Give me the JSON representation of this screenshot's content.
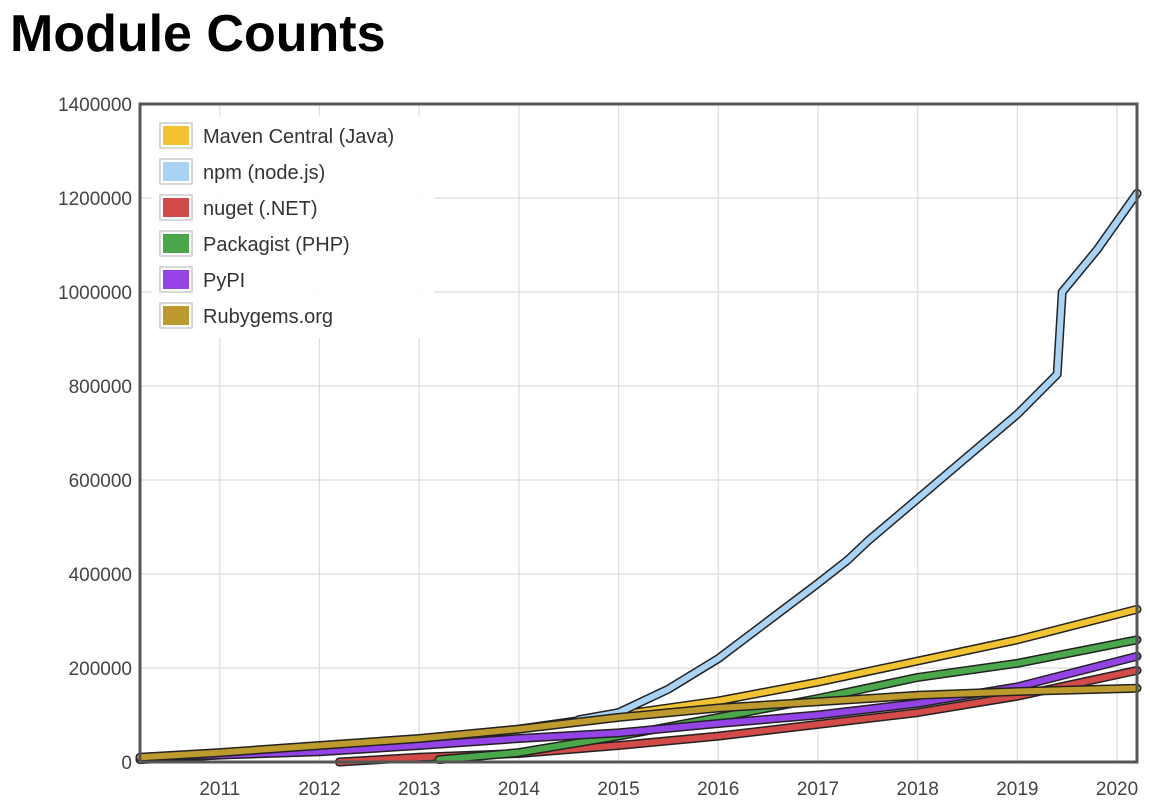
{
  "page": {
    "title": "Module Counts"
  },
  "chart_data": {
    "type": "line",
    "title": "Module Counts",
    "xlabel": "",
    "ylabel": "",
    "xlim": [
      2010.2,
      2020.2
    ],
    "ylim": [
      0,
      1400000
    ],
    "x_ticks": [
      2011,
      2012,
      2013,
      2014,
      2015,
      2016,
      2017,
      2018,
      2019,
      2020
    ],
    "x_tick_labels": [
      "2011",
      "2012",
      "2013",
      "2014",
      "2015",
      "2016",
      "2017",
      "2018",
      "2019",
      "2020"
    ],
    "y_ticks": [
      0,
      200000,
      400000,
      600000,
      800000,
      1000000,
      1200000,
      1400000
    ],
    "y_tick_labels": [
      "0",
      "200000",
      "400000",
      "600000",
      "800000",
      "1000000",
      "1200000",
      "1400000"
    ],
    "grid": true,
    "legend": "top-left",
    "series": [
      {
        "name": "Maven Central (Java)",
        "color": "#f1c232",
        "x": [
          2010.2,
          2011,
          2012,
          2013,
          2014,
          2015,
          2016,
          2017,
          2018,
          2019,
          2020.2
        ],
        "y": [
          5000,
          15000,
          28000,
          48000,
          70000,
          100000,
          130000,
          170000,
          215000,
          260000,
          325000
        ]
      },
      {
        "name": "npm (node.js)",
        "color": "#a8d3f5",
        "x": [
          2014.6,
          2015,
          2015.5,
          2016,
          2016.5,
          2017,
          2017.3,
          2017.5,
          2018,
          2018.5,
          2019,
          2019.4,
          2019.45,
          2019.8,
          2020.2
        ],
        "y": [
          90000,
          105000,
          155000,
          220000,
          300000,
          380000,
          430000,
          470000,
          560000,
          650000,
          740000,
          825000,
          1000000,
          1090000,
          1210000
        ]
      },
      {
        "name": "nuget (.NET)",
        "color": "#d24b48",
        "x": [
          2012.2,
          2013,
          2014,
          2015,
          2016,
          2017,
          2018,
          2019,
          2020.2
        ],
        "y": [
          0,
          10000,
          18000,
          35000,
          55000,
          80000,
          105000,
          140000,
          195000
        ]
      },
      {
        "name": "Packagist (PHP)",
        "color": "#4aa84a",
        "x": [
          2013.2,
          2014,
          2015,
          2016,
          2017,
          2018,
          2019,
          2020.2
        ],
        "y": [
          5000,
          20000,
          55000,
          95000,
          135000,
          180000,
          210000,
          260000
        ]
      },
      {
        "name": "PyPI",
        "color": "#9444e6",
        "x": [
          2010.2,
          2011,
          2012,
          2013,
          2014,
          2015,
          2016,
          2017,
          2018,
          2019,
          2020.2
        ],
        "y": [
          10000,
          15000,
          22000,
          35000,
          50000,
          62000,
          82000,
          100000,
          125000,
          160000,
          225000
        ]
      },
      {
        "name": "Rubygems.org",
        "color": "#bd9a2e",
        "x": [
          2010.2,
          2011,
          2012,
          2013,
          2014,
          2015,
          2016,
          2017,
          2018,
          2019,
          2020.2
        ],
        "y": [
          10000,
          20000,
          35000,
          50000,
          70000,
          95000,
          115000,
          128000,
          142000,
          150000,
          157000
        ]
      }
    ]
  }
}
